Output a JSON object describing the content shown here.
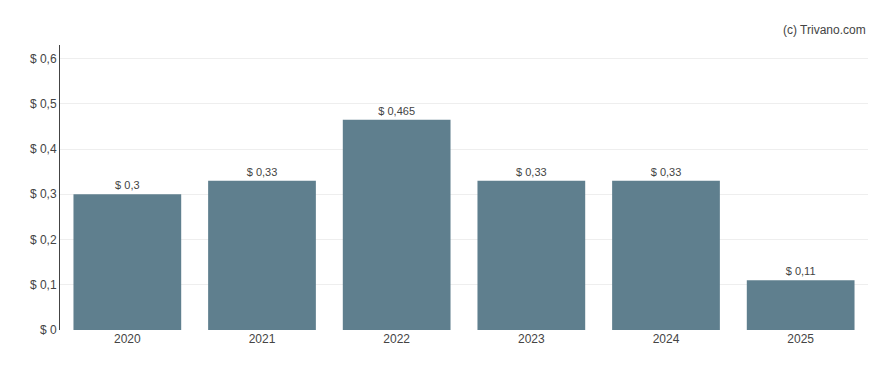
{
  "chart_data": {
    "type": "bar",
    "categories": [
      "2020",
      "2021",
      "2022",
      "2023",
      "2024",
      "2025"
    ],
    "values": [
      0.3,
      0.33,
      0.465,
      0.33,
      0.33,
      0.11
    ],
    "value_labels": [
      "$ 0,3",
      "$ 0,33",
      "$ 0,465",
      "$ 0,33",
      "$ 0,33",
      "$ 0,11"
    ],
    "data_labels": true,
    "color": "#5f7f8e",
    "ylim": [
      0,
      0.63
    ],
    "yticks": [
      {
        "value": 0.0,
        "label": "$ 0"
      },
      {
        "value": 0.1,
        "label": "$ 0,1"
      },
      {
        "value": 0.2,
        "label": "$ 0,2"
      },
      {
        "value": 0.3,
        "label": "$ 0,3"
      },
      {
        "value": 0.4,
        "label": "$ 0,4"
      },
      {
        "value": 0.5,
        "label": "$ 0,5"
      },
      {
        "value": 0.6,
        "label": "$ 0,6"
      }
    ],
    "grid": true,
    "annotations": [
      "(c) Trivano.com"
    ]
  }
}
